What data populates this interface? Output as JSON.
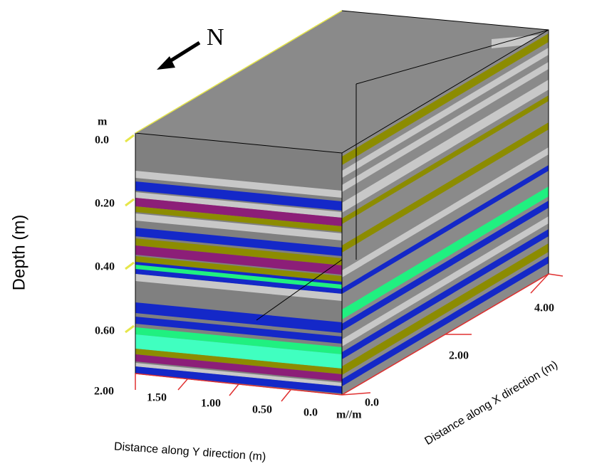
{
  "north_label": "N",
  "depth_axis": {
    "title": "Depth (m)",
    "unit": "m",
    "ticks": [
      "0.0",
      "0.20",
      "0.40",
      "0.60"
    ]
  },
  "y_axis": {
    "title": "Distance along Y direction (m)",
    "ticks": [
      "2.00",
      "1.50",
      "1.00",
      "0.50",
      "0.0"
    ],
    "unit": "m//m"
  },
  "x_axis": {
    "title": "Distance along X direction (m)",
    "ticks": [
      "0.0",
      "2.00",
      "4.00"
    ]
  }
}
